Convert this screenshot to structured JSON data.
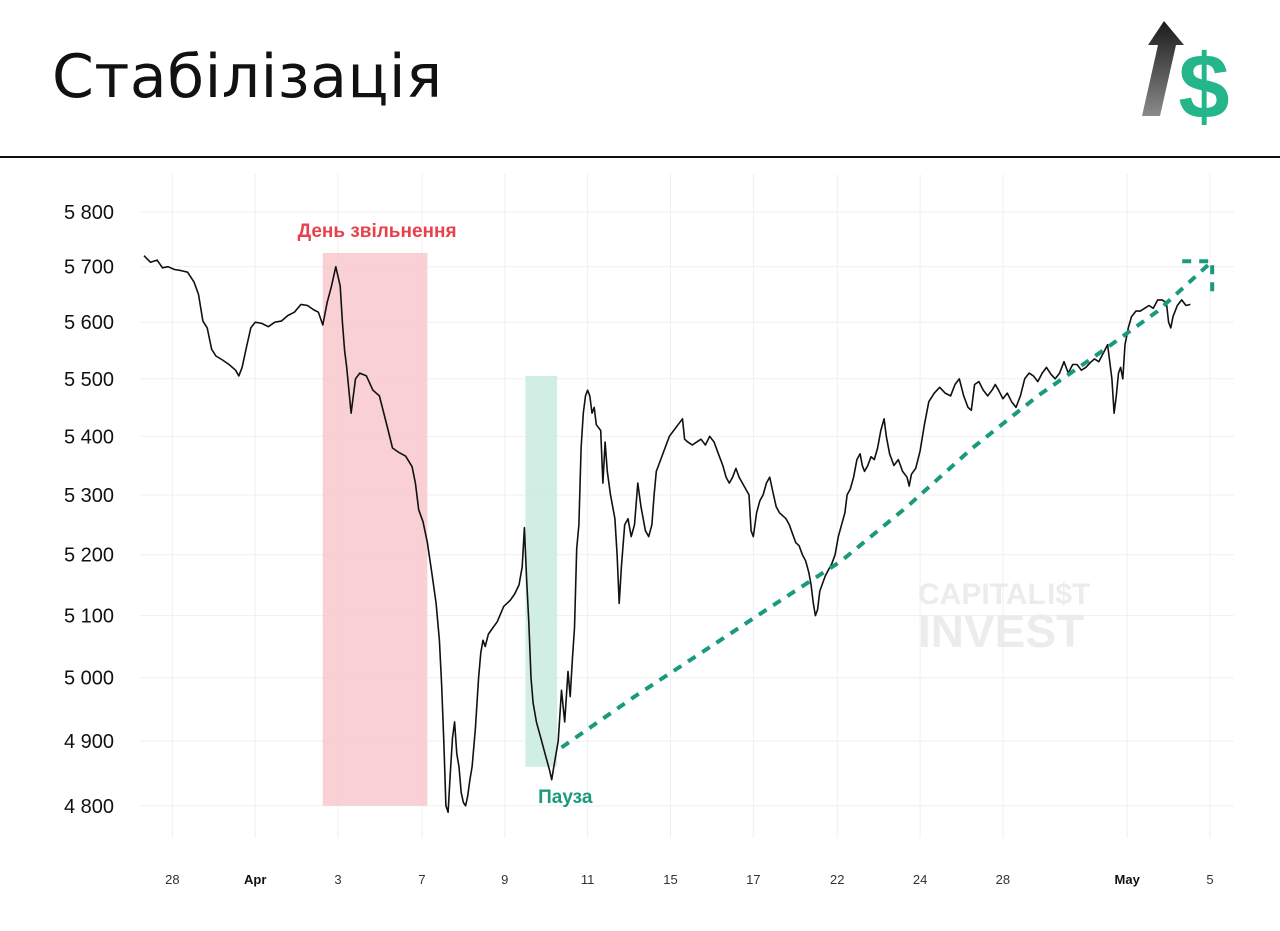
{
  "page": {
    "title": "Стабілізація"
  },
  "colors": {
    "price_line": "#111111",
    "release_zone": "#f8c8cc",
    "pause_zone": "#c9ebe1",
    "red_label": "#e8414d",
    "green_label": "#1a9a7c",
    "trend": "#1a9a7c",
    "logo_green": "#24b58a"
  },
  "icons": {
    "logo": "arrow-dollar-logo"
  },
  "watermark": {
    "line1": "CAPITAL",
    "line1_symbol": "I$T",
    "line2": "INVEST"
  },
  "annotations": {
    "release_day": "День звільнення",
    "pause": "Пауза"
  },
  "chart_data": {
    "type": "line",
    "title": "Стабілізація",
    "xlabel": "",
    "ylabel": "",
    "ylim": [
      4760,
      5830
    ],
    "y_scale": "log",
    "yticks": [
      5800,
      5700,
      5600,
      5500,
      5400,
      5300,
      5200,
      5100,
      5000,
      4900,
      4800
    ],
    "ytick_labels": [
      "5 800",
      "5 700",
      "5 600",
      "5 500",
      "5 400",
      "5 300",
      "5 200",
      "5 100",
      "5 000",
      "4 900",
      "4 800"
    ],
    "xlim": [
      0,
      1000
    ],
    "xticks": [
      {
        "x": 26,
        "label": "28",
        "bold": false
      },
      {
        "x": 102,
        "label": "Apr",
        "bold": true
      },
      {
        "x": 178,
        "label": "3",
        "bold": false
      },
      {
        "x": 255,
        "label": "7",
        "bold": false
      },
      {
        "x": 331,
        "label": "9",
        "bold": false
      },
      {
        "x": 407,
        "label": "11",
        "bold": false
      },
      {
        "x": 483,
        "label": "15",
        "bold": false
      },
      {
        "x": 559,
        "label": "17",
        "bold": false
      },
      {
        "x": 636,
        "label": "22",
        "bold": false
      },
      {
        "x": 712,
        "label": "24",
        "bold": false
      },
      {
        "x": 788,
        "label": "28",
        "bold": false
      },
      {
        "x": 902,
        "label": "May",
        "bold": true
      },
      {
        "x": 978,
        "label": "5",
        "bold": false
      }
    ],
    "grid": true,
    "series": [
      {
        "name": "",
        "points": [
          [
            0,
            5720
          ],
          [
            6,
            5708
          ],
          [
            12,
            5712
          ],
          [
            17,
            5698
          ],
          [
            22,
            5700
          ],
          [
            28,
            5695
          ],
          [
            34,
            5693
          ],
          [
            40,
            5690
          ],
          [
            46,
            5672
          ],
          [
            50,
            5650
          ],
          [
            54,
            5602
          ],
          [
            58,
            5590
          ],
          [
            62,
            5552
          ],
          [
            66,
            5540
          ],
          [
            72,
            5533
          ],
          [
            78,
            5525
          ],
          [
            84,
            5515
          ],
          [
            87,
            5505
          ],
          [
            90,
            5520
          ],
          [
            94,
            5556
          ],
          [
            98,
            5590
          ],
          [
            102,
            5600
          ],
          [
            108,
            5598
          ],
          [
            114,
            5592
          ],
          [
            120,
            5600
          ],
          [
            126,
            5602
          ],
          [
            132,
            5612
          ],
          [
            138,
            5618
          ],
          [
            144,
            5632
          ],
          [
            150,
            5630
          ],
          [
            156,
            5622
          ],
          [
            160,
            5618
          ],
          [
            164,
            5595
          ],
          [
            168,
            5635
          ],
          [
            172,
            5665
          ],
          [
            176,
            5700
          ],
          [
            180,
            5665
          ],
          [
            182,
            5600
          ],
          [
            184,
            5550
          ],
          [
            186,
            5520
          ],
          [
            190,
            5440
          ],
          [
            194,
            5500
          ],
          [
            198,
            5510
          ],
          [
            204,
            5505
          ],
          [
            210,
            5480
          ],
          [
            216,
            5470
          ],
          [
            220,
            5440
          ],
          [
            224,
            5410
          ],
          [
            228,
            5380
          ],
          [
            234,
            5372
          ],
          [
            240,
            5366
          ],
          [
            246,
            5348
          ],
          [
            249,
            5320
          ],
          [
            252,
            5275
          ],
          [
            256,
            5255
          ],
          [
            260,
            5220
          ],
          [
            264,
            5170
          ],
          [
            268,
            5120
          ],
          [
            271,
            5060
          ],
          [
            273,
            4990
          ],
          [
            275,
            4900
          ],
          [
            277,
            4800
          ],
          [
            279,
            4790
          ],
          [
            281,
            4850
          ],
          [
            283,
            4905
          ],
          [
            285,
            4930
          ],
          [
            287,
            4880
          ],
          [
            289,
            4860
          ],
          [
            291,
            4820
          ],
          [
            293,
            4805
          ],
          [
            295,
            4800
          ],
          [
            297,
            4815
          ],
          [
            299,
            4840
          ],
          [
            301,
            4860
          ],
          [
            304,
            4920
          ],
          [
            307,
            5000
          ],
          [
            309,
            5040
          ],
          [
            311,
            5060
          ],
          [
            313,
            5050
          ],
          [
            316,
            5070
          ],
          [
            320,
            5080
          ],
          [
            324,
            5090
          ],
          [
            330,
            5115
          ],
          [
            336,
            5125
          ],
          [
            340,
            5135
          ],
          [
            344,
            5150
          ],
          [
            347,
            5180
          ],
          [
            349,
            5245
          ],
          [
            351,
            5160
          ],
          [
            353,
            5090
          ],
          [
            355,
            5000
          ],
          [
            357,
            4960
          ],
          [
            360,
            4930
          ],
          [
            364,
            4905
          ],
          [
            368,
            4880
          ],
          [
            372,
            4855
          ],
          [
            374,
            4840
          ],
          [
            376,
            4860
          ],
          [
            380,
            4900
          ],
          [
            383,
            4980
          ],
          [
            386,
            4930
          ],
          [
            389,
            5010
          ],
          [
            391,
            4970
          ],
          [
            393,
            5030
          ],
          [
            395,
            5080
          ],
          [
            397,
            5210
          ],
          [
            399,
            5250
          ],
          [
            401,
            5380
          ],
          [
            403,
            5440
          ],
          [
            405,
            5470
          ],
          [
            407,
            5480
          ],
          [
            409,
            5470
          ],
          [
            411,
            5440
          ],
          [
            413,
            5450
          ],
          [
            415,
            5420
          ],
          [
            419,
            5410
          ],
          [
            421,
            5320
          ],
          [
            423,
            5390
          ],
          [
            425,
            5340
          ],
          [
            428,
            5300
          ],
          [
            432,
            5260
          ],
          [
            434,
            5200
          ],
          [
            436,
            5120
          ],
          [
            438,
            5180
          ],
          [
            441,
            5250
          ],
          [
            444,
            5260
          ],
          [
            447,
            5230
          ],
          [
            450,
            5250
          ],
          [
            453,
            5320
          ],
          [
            456,
            5280
          ],
          [
            460,
            5240
          ],
          [
            463,
            5230
          ],
          [
            466,
            5250
          ],
          [
            468,
            5300
          ],
          [
            470,
            5340
          ],
          [
            474,
            5360
          ],
          [
            478,
            5380
          ],
          [
            482,
            5400
          ],
          [
            486,
            5410
          ],
          [
            490,
            5420
          ],
          [
            494,
            5430
          ],
          [
            496,
            5395
          ],
          [
            499,
            5390
          ],
          [
            503,
            5385
          ],
          [
            507,
            5390
          ],
          [
            511,
            5395
          ],
          [
            515,
            5385
          ],
          [
            519,
            5400
          ],
          [
            523,
            5390
          ],
          [
            527,
            5370
          ],
          [
            531,
            5350
          ],
          [
            534,
            5330
          ],
          [
            537,
            5320
          ],
          [
            540,
            5330
          ],
          [
            543,
            5345
          ],
          [
            546,
            5330
          ],
          [
            549,
            5320
          ],
          [
            552,
            5310
          ],
          [
            555,
            5300
          ],
          [
            557,
            5240
          ],
          [
            559,
            5230
          ],
          [
            562,
            5270
          ],
          [
            565,
            5290
          ],
          [
            568,
            5300
          ],
          [
            571,
            5320
          ],
          [
            574,
            5330
          ],
          [
            577,
            5305
          ],
          [
            580,
            5280
          ],
          [
            583,
            5270
          ],
          [
            586,
            5265
          ],
          [
            589,
            5260
          ],
          [
            592,
            5250
          ],
          [
            595,
            5235
          ],
          [
            598,
            5220
          ],
          [
            601,
            5215
          ],
          [
            604,
            5200
          ],
          [
            607,
            5190
          ],
          [
            610,
            5170
          ],
          [
            612,
            5150
          ],
          [
            614,
            5120
          ],
          [
            616,
            5100
          ],
          [
            618,
            5110
          ],
          [
            620,
            5140
          ],
          [
            622,
            5150
          ],
          [
            625,
            5165
          ],
          [
            628,
            5175
          ],
          [
            631,
            5185
          ],
          [
            634,
            5200
          ],
          [
            637,
            5230
          ],
          [
            640,
            5250
          ],
          [
            643,
            5270
          ],
          [
            645,
            5300
          ],
          [
            648,
            5310
          ],
          [
            651,
            5330
          ],
          [
            654,
            5360
          ],
          [
            657,
            5370
          ],
          [
            659,
            5350
          ],
          [
            661,
            5340
          ],
          [
            664,
            5350
          ],
          [
            667,
            5365
          ],
          [
            670,
            5360
          ],
          [
            673,
            5380
          ],
          [
            676,
            5410
          ],
          [
            679,
            5430
          ],
          [
            681,
            5400
          ],
          [
            684,
            5370
          ],
          [
            688,
            5350
          ],
          [
            692,
            5360
          ],
          [
            696,
            5340
          ],
          [
            700,
            5330
          ],
          [
            702,
            5315
          ],
          [
            704,
            5335
          ],
          [
            708,
            5345
          ],
          [
            712,
            5375
          ],
          [
            716,
            5420
          ],
          [
            720,
            5460
          ],
          [
            725,
            5475
          ],
          [
            730,
            5485
          ],
          [
            735,
            5475
          ],
          [
            740,
            5470
          ],
          [
            744,
            5490
          ],
          [
            748,
            5500
          ],
          [
            752,
            5470
          ],
          [
            756,
            5450
          ],
          [
            759,
            5445
          ],
          [
            762,
            5490
          ],
          [
            766,
            5495
          ],
          [
            770,
            5480
          ],
          [
            774,
            5470
          ],
          [
            778,
            5480
          ],
          [
            781,
            5490
          ],
          [
            784,
            5480
          ],
          [
            788,
            5465
          ],
          [
            792,
            5475
          ],
          [
            796,
            5460
          ],
          [
            800,
            5450
          ],
          [
            804,
            5470
          ],
          [
            808,
            5500
          ],
          [
            812,
            5510
          ],
          [
            816,
            5505
          ],
          [
            820,
            5495
          ],
          [
            824,
            5510
          ],
          [
            828,
            5520
          ],
          [
            832,
            5508
          ],
          [
            836,
            5500
          ],
          [
            840,
            5510
          ],
          [
            844,
            5530
          ],
          [
            848,
            5510
          ],
          [
            852,
            5525
          ],
          [
            856,
            5525
          ],
          [
            860,
            5515
          ],
          [
            864,
            5520
          ],
          [
            868,
            5528
          ],
          [
            872,
            5535
          ],
          [
            876,
            5530
          ],
          [
            880,
            5545
          ],
          [
            884,
            5560
          ],
          [
            888,
            5500
          ],
          [
            890,
            5440
          ],
          [
            892,
            5470
          ],
          [
            894,
            5510
          ],
          [
            896,
            5520
          ],
          [
            898,
            5500
          ],
          [
            900,
            5560
          ],
          [
            903,
            5590
          ],
          [
            906,
            5610
          ],
          [
            910,
            5620
          ],
          [
            914,
            5620
          ],
          [
            918,
            5625
          ],
          [
            922,
            5630
          ],
          [
            926,
            5625
          ],
          [
            930,
            5640
          ],
          [
            934,
            5640
          ],
          [
            938,
            5635
          ],
          [
            940,
            5600
          ],
          [
            942,
            5590
          ],
          [
            944,
            5610
          ],
          [
            948,
            5630
          ],
          [
            952,
            5640
          ],
          [
            956,
            5630
          ],
          [
            960,
            5632
          ]
        ]
      }
    ],
    "shaded_regions": [
      {
        "label": "День звільнення",
        "x_start": 164,
        "x_end": 260,
        "y_low": 4800,
        "y_high": 5725
      },
      {
        "label": "Пауза",
        "x_start": 350,
        "x_end": 379,
        "y_low": 4860,
        "y_high": 5505
      }
    ],
    "trend_arrow": {
      "style": "dashed",
      "points": [
        [
          383,
          4890
        ],
        [
          450,
          4970
        ],
        [
          520,
          5050
        ],
        [
          580,
          5120
        ],
        [
          640,
          5190
        ],
        [
          700,
          5280
        ],
        [
          760,
          5380
        ],
        [
          820,
          5470
        ],
        [
          880,
          5550
        ],
        [
          930,
          5620
        ],
        [
          980,
          5710
        ]
      ]
    }
  }
}
